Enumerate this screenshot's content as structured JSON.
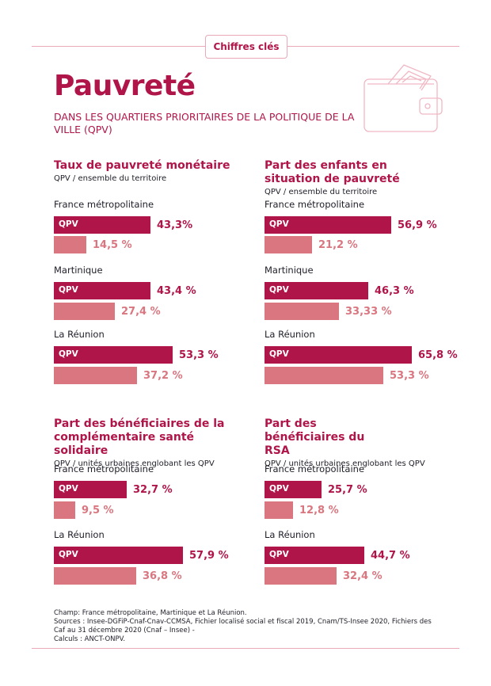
{
  "badge": "Chiffres clés",
  "title": "Pauvreté",
  "subtitle": "DANS LES QUARTIERS PRIORITAIRES DE LA POLITIQUE DE LA VILLE (QPV)",
  "colors": {
    "qpv": "#b0154a",
    "reference": "#d9767f",
    "text": "#1e1e28"
  },
  "icon": "wallet-icon",
  "chart_data": [
    {
      "type": "bar",
      "title": "Taux de pauvreté monétaire",
      "subtitle": "QPV / ensemble du territoire",
      "categories": [
        "France métropolitaine",
        "Martinique",
        "La Réunion"
      ],
      "series": [
        {
          "name": "QPV",
          "values": [
            43.3,
            43.4,
            53.3
          ],
          "labels": [
            "43,3%",
            "43,4 %",
            "53,3 %"
          ]
        },
        {
          "values": [
            14.5,
            27.4,
            37.2
          ],
          "labels": [
            "14,5 %",
            "27,4 %",
            "37,2 %"
          ]
        }
      ]
    },
    {
      "type": "bar",
      "title": "Part des enfants en situation de pauvreté",
      "subtitle": "QPV / ensemble du territoire",
      "categories": [
        "France métropolitaine",
        "Martinique",
        "La Réunion"
      ],
      "series": [
        {
          "name": "QPV",
          "values": [
            56.9,
            46.3,
            65.8
          ],
          "labels": [
            "56,9 %",
            "46,3 %",
            "65,8 %"
          ]
        },
        {
          "values": [
            21.2,
            33.33,
            53.3
          ],
          "labels": [
            "21,2 %",
            "33,33 %",
            "53,3 %"
          ]
        }
      ]
    },
    {
      "type": "bar",
      "title": "Part des bénéficiaires de la complémentaire santé solidaire",
      "subtitle": "QPV / unités urbaines englobant les QPV",
      "categories": [
        "France métropolitaine",
        "La Réunion"
      ],
      "series": [
        {
          "name": "QPV",
          "values": [
            32.7,
            57.9
          ],
          "labels": [
            "32,7 %",
            "57,9 %"
          ]
        },
        {
          "values": [
            9.5,
            36.8
          ],
          "labels": [
            "9,5 %",
            "36,8 %"
          ]
        }
      ]
    },
    {
      "type": "bar",
      "title": "Part des bénéficiaires du RSA",
      "subtitle": "QPV / unités urbaines englobant les QPV",
      "categories": [
        "France métropolitaine",
        "La Réunion"
      ],
      "series": [
        {
          "name": "QPV",
          "values": [
            25.7,
            44.7
          ],
          "labels": [
            "25,7 %",
            "44,7 %"
          ]
        },
        {
          "values": [
            12.8,
            32.4
          ],
          "labels": [
            "12,8 %",
            "32,4 %"
          ]
        }
      ]
    }
  ],
  "footer": {
    "champ": "Champ: France métropolitaine, Martinique et La Réunion.",
    "sources": "Sources : Insee-DGFiP-Cnaf-Cnav-CCMSA, Fichier localisé social et fiscal 2019, Cnam/TS-Insee 2020, Fichiers des Caf au 31 décembre 2020 (Cnaf – Insee) -",
    "calculs": "Calculs : ANCT-ONPV."
  }
}
